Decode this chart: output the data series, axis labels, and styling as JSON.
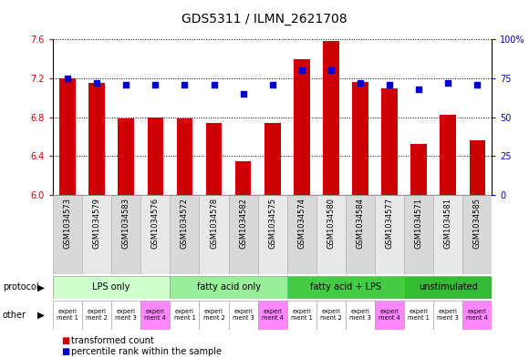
{
  "title": "GDS5311 / ILMN_2621708",
  "samples": [
    "GSM1034573",
    "GSM1034579",
    "GSM1034583",
    "GSM1034576",
    "GSM1034572",
    "GSM1034578",
    "GSM1034582",
    "GSM1034575",
    "GSM1034574",
    "GSM1034580",
    "GSM1034584",
    "GSM1034577",
    "GSM1034571",
    "GSM1034581",
    "GSM1034585"
  ],
  "bar_values": [
    7.2,
    7.15,
    6.79,
    6.8,
    6.79,
    6.74,
    6.35,
    6.74,
    7.4,
    7.58,
    7.16,
    7.1,
    6.53,
    6.83,
    6.56
  ],
  "dot_values": [
    75,
    72,
    71,
    71,
    71,
    71,
    65,
    71,
    80,
    80,
    72,
    71,
    68,
    72,
    71
  ],
  "ylim_left": [
    6.0,
    7.6
  ],
  "ylim_right": [
    0,
    100
  ],
  "yticks_left": [
    6.0,
    6.4,
    6.8,
    7.2,
    7.6
  ],
  "yticks_right": [
    0,
    25,
    50,
    75,
    100
  ],
  "bar_color": "#cc0000",
  "dot_color": "#0000cc",
  "bg_color": "#ffffff",
  "protocol_groups": [
    {
      "label": "LPS only",
      "start": 0,
      "end": 4,
      "color": "#ccffcc"
    },
    {
      "label": "fatty acid only",
      "start": 4,
      "end": 8,
      "color": "#99ee99"
    },
    {
      "label": "fatty acid + LPS",
      "start": 8,
      "end": 12,
      "color": "#44cc44"
    },
    {
      "label": "unstimulated",
      "start": 12,
      "end": 15,
      "color": "#33bb33"
    }
  ],
  "other_labels": [
    "experi\nment 1",
    "experi\nment 2",
    "experi\nment 3",
    "experi\nment 4",
    "experi\nment 1",
    "experi\nment 2",
    "experi\nment 3",
    "experi\nment 4",
    "experi\nment 1",
    "experi\nment 2",
    "experi\nment 3",
    "experi\nment 4",
    "experi\nment 1",
    "experi\nment 3",
    "experi\nment 4"
  ],
  "other_colors": [
    "#ffffff",
    "#ffffff",
    "#ffffff",
    "#ff88ff",
    "#ffffff",
    "#ffffff",
    "#ffffff",
    "#ff88ff",
    "#ffffff",
    "#ffffff",
    "#ffffff",
    "#ff88ff",
    "#ffffff",
    "#ffffff",
    "#ff88ff"
  ],
  "bar_color_legend": "#cc0000",
  "dot_color_legend": "#0000cc",
  "title_fontsize": 10,
  "tick_fontsize": 7,
  "label_fontsize": 7.5,
  "bar_bottom": 6.0
}
